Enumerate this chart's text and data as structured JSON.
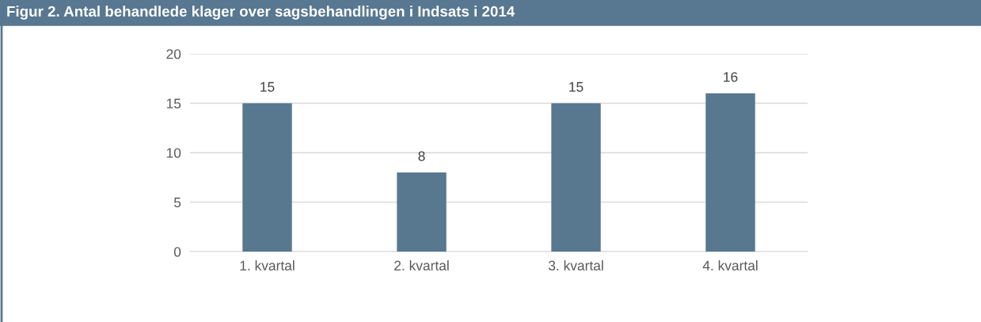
{
  "chart_data": {
    "type": "bar",
    "title": "Figur 2. Antal behandlede klager over sagsbehandlingen i Indsats i 2014",
    "categories": [
      "1. kvartal",
      "2. kvartal",
      "3. kvartal",
      "4. kvartal"
    ],
    "values": [
      15,
      8,
      15,
      16
    ],
    "color": "#57788f",
    "ylim": [
      0,
      20
    ],
    "yticks": [
      0,
      5,
      10,
      15,
      20
    ],
    "grid": "y",
    "data_labels": true
  }
}
